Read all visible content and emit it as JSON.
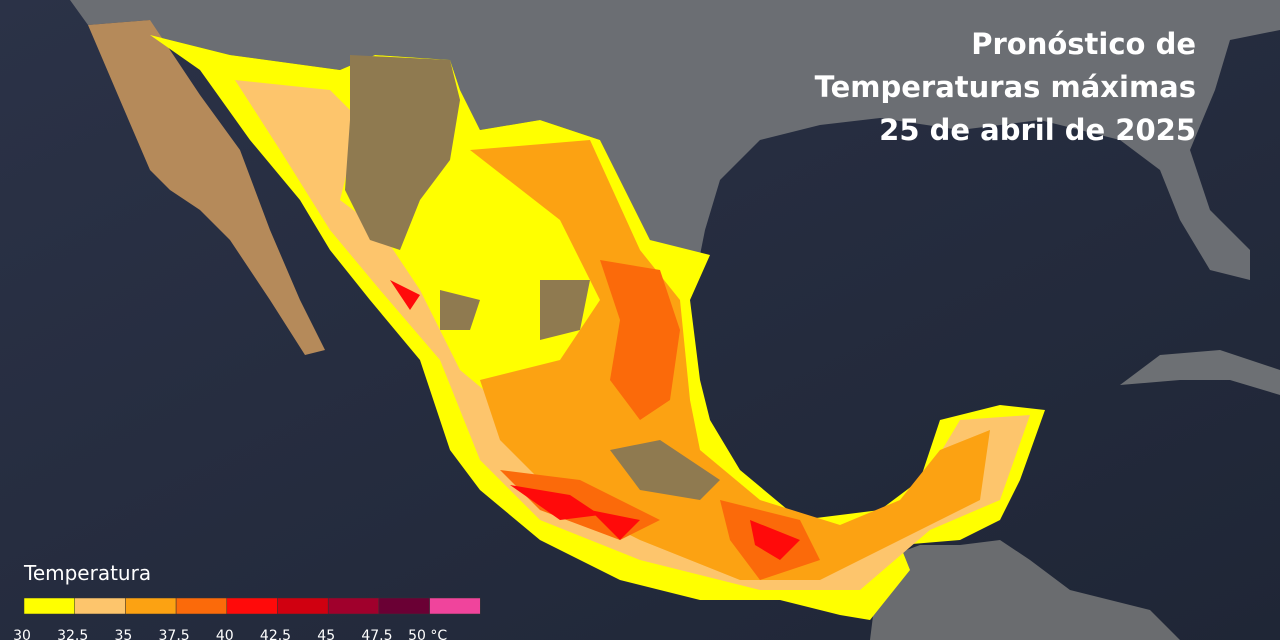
{
  "title": [
    "Pronóstico de",
    "Temperaturas máximas",
    "25 de abril de 2025"
  ],
  "legend": {
    "title": "Temperatura",
    "ticks": [
      30,
      32.5,
      35,
      37.5,
      40,
      42.5,
      45,
      47.5,
      {
        "value": 50,
        "label": "50 °C"
      }
    ],
    "colors": [
      "#ffff00",
      "#fdc56c",
      "#fca212",
      "#fb6a0a",
      "#ff0a0a",
      "#d00010",
      "#a0002c",
      "#6a0034",
      "#f0449c"
    ]
  }
}
